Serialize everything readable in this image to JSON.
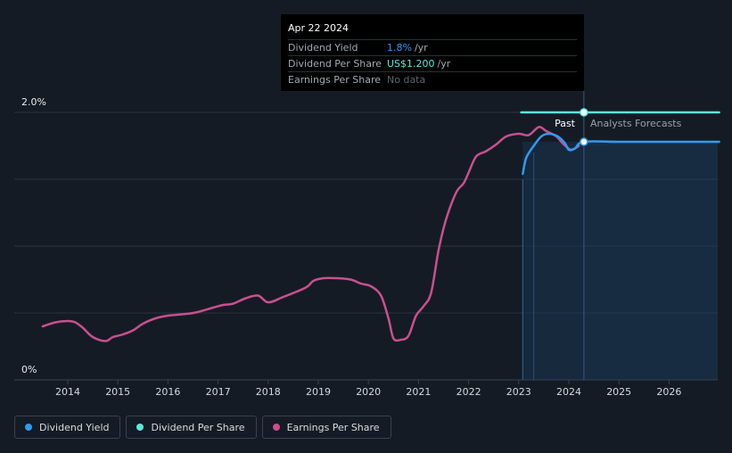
{
  "tooltip": {
    "date": "Apr 22 2024",
    "rows": [
      {
        "label": "Dividend Yield",
        "value": "1.8%",
        "unit": "/yr",
        "color": "#2f9bf0"
      },
      {
        "label": "Dividend Per Share",
        "value": "US$1.200",
        "unit": "/yr",
        "color": "#5ee6dc"
      },
      {
        "label": "Earnings Per Share",
        "value": "No data"
      }
    ]
  },
  "regions": {
    "past": "Past",
    "forecast": "Analysts Forecasts"
  },
  "legend": [
    {
      "label": "Dividend Yield",
      "color": "#2f9bf0"
    },
    {
      "label": "Dividend Per Share",
      "color": "#5ee6dc"
    },
    {
      "label": "Earnings Per Share",
      "color": "#c9508e"
    }
  ],
  "chart_data": {
    "type": "line",
    "title": "",
    "xlabel": "",
    "ylabel": "",
    "xlim": [
      2013.5,
      2027.0
    ],
    "ylim": [
      0,
      2.0
    ],
    "x_ticks": [
      "2014",
      "2015",
      "2016",
      "2017",
      "2018",
      "2019",
      "2020",
      "2021",
      "2022",
      "2023",
      "2024",
      "2025",
      "2026"
    ],
    "y_tick_labels": [
      {
        "value": 2.0,
        "label": "2.0%"
      },
      {
        "value": 0,
        "label": "0%"
      }
    ],
    "gridlines": [
      0.5,
      1.0,
      1.5,
      2.0
    ],
    "past_cutoff": 2024.3,
    "series": [
      {
        "name": "Earnings Per Share",
        "color": "#c9508e",
        "points": [
          [
            2013.5,
            0.4
          ],
          [
            2013.75,
            0.43
          ],
          [
            2014.0,
            0.44
          ],
          [
            2014.15,
            0.43
          ],
          [
            2014.3,
            0.39
          ],
          [
            2014.5,
            0.32
          ],
          [
            2014.75,
            0.29
          ],
          [
            2014.9,
            0.32
          ],
          [
            2015.1,
            0.34
          ],
          [
            2015.3,
            0.37
          ],
          [
            2015.5,
            0.42
          ],
          [
            2015.75,
            0.46
          ],
          [
            2016.0,
            0.48
          ],
          [
            2016.5,
            0.5
          ],
          [
            2016.9,
            0.54
          ],
          [
            2017.1,
            0.56
          ],
          [
            2017.3,
            0.57
          ],
          [
            2017.55,
            0.61
          ],
          [
            2017.8,
            0.63
          ],
          [
            2018.0,
            0.58
          ],
          [
            2018.3,
            0.62
          ],
          [
            2018.75,
            0.69
          ],
          [
            2018.9,
            0.74
          ],
          [
            2019.1,
            0.76
          ],
          [
            2019.4,
            0.76
          ],
          [
            2019.65,
            0.75
          ],
          [
            2019.85,
            0.72
          ],
          [
            2020.05,
            0.7
          ],
          [
            2020.25,
            0.63
          ],
          [
            2020.4,
            0.46
          ],
          [
            2020.5,
            0.31
          ],
          [
            2020.65,
            0.3
          ],
          [
            2020.8,
            0.33
          ],
          [
            2020.95,
            0.48
          ],
          [
            2021.1,
            0.55
          ],
          [
            2021.25,
            0.65
          ],
          [
            2021.4,
            0.97
          ],
          [
            2021.55,
            1.2
          ],
          [
            2021.75,
            1.4
          ],
          [
            2021.9,
            1.47
          ],
          [
            2022.0,
            1.55
          ],
          [
            2022.15,
            1.67
          ],
          [
            2022.35,
            1.71
          ],
          [
            2022.55,
            1.76
          ],
          [
            2022.75,
            1.82
          ],
          [
            2023.0,
            1.84
          ],
          [
            2023.2,
            1.83
          ],
          [
            2023.4,
            1.89
          ],
          [
            2023.55,
            1.86
          ],
          [
            2023.75,
            1.82
          ],
          [
            2023.9,
            1.76
          ],
          [
            2024.05,
            1.72
          ],
          [
            2024.2,
            1.75
          ]
        ]
      },
      {
        "name": "Dividend Yield",
        "color": "#2f9bf0",
        "points": [
          [
            2023.08,
            1.54
          ],
          [
            2023.15,
            1.66
          ],
          [
            2023.3,
            1.75
          ],
          [
            2023.45,
            1.82
          ],
          [
            2023.6,
            1.84
          ],
          [
            2023.78,
            1.82
          ],
          [
            2023.92,
            1.77
          ],
          [
            2024.0,
            1.72
          ],
          [
            2024.12,
            1.73
          ],
          [
            2024.3,
            1.78
          ],
          [
            2025.0,
            1.78
          ],
          [
            2026.5,
            1.78
          ],
          [
            2027.0,
            1.78
          ]
        ]
      },
      {
        "name": "Dividend Per Share",
        "color": "#5ee6dc",
        "points": [
          [
            2023.05,
            2.0
          ],
          [
            2024.3,
            2.0
          ],
          [
            2025.0,
            2.0
          ],
          [
            2026.5,
            2.0
          ],
          [
            2027.0,
            2.0
          ]
        ]
      }
    ],
    "markers": [
      {
        "series": "Dividend Per Share",
        "x": 2024.3,
        "y": 2.0
      },
      {
        "series": "Dividend Yield",
        "x": 2024.3,
        "y": 1.78
      }
    ]
  }
}
